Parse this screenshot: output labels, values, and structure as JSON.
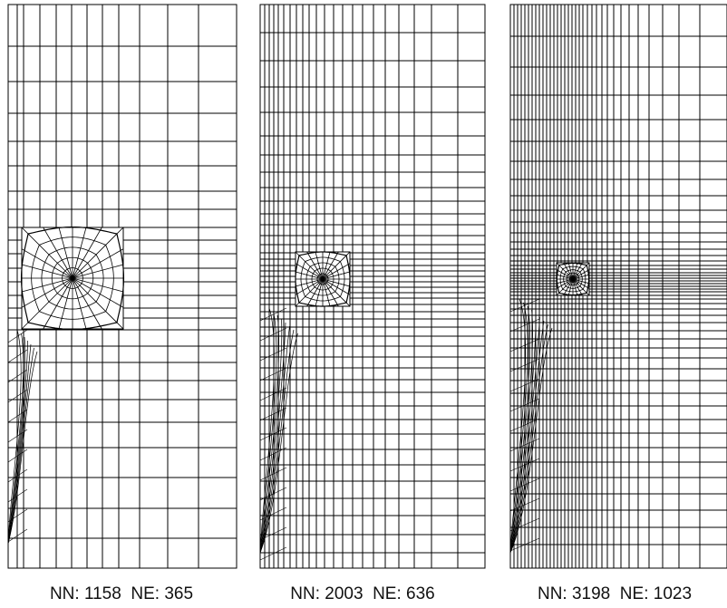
{
  "panels": [
    {
      "caption": "NN: 1158  NE: 365"
    },
    {
      "caption": "NN: 2003  NE: 636"
    },
    {
      "caption": "NN: 3198  NE: 1023"
    }
  ],
  "colors": {
    "line": "#000000",
    "background": "#ffffff"
  }
}
